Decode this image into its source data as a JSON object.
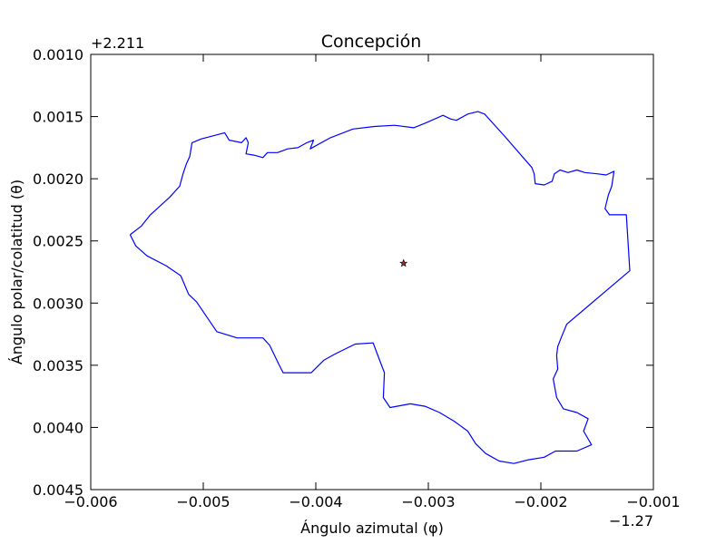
{
  "chart_data": {
    "type": "line",
    "title": "Concepción",
    "xlabel": "Ángulo azimutal (φ)",
    "ylabel": "Ángulo polar/colatitud (θ)",
    "x_offset_label": "−1.27",
    "y_offset_label": "+2.211",
    "xlim": [
      -0.006,
      -0.001
    ],
    "ylim": [
      0.0045,
      0.001
    ],
    "y_inverted": true,
    "grid": false,
    "xticks": [
      -0.006,
      -0.005,
      -0.004,
      -0.003,
      -0.002,
      -0.001
    ],
    "xtick_labels": [
      "−0.006",
      "−0.005",
      "−0.004",
      "−0.003",
      "−0.002",
      "−0.001"
    ],
    "yticks": [
      0.001,
      0.0015,
      0.002,
      0.0025,
      0.003,
      0.0035,
      0.004,
      0.0045
    ],
    "ytick_labels": [
      "0.0010",
      "0.0015",
      "0.0020",
      "0.0025",
      "0.0030",
      "0.0035",
      "0.0040",
      "0.0045"
    ],
    "line_color": "#0000ff",
    "marker_color": "#a52a2a",
    "series": [
      {
        "values": [
          [
            -0.00565,
            0.00245
          ],
          [
            -0.00555,
            0.00238
          ],
          [
            -0.00547,
            0.00229
          ],
          [
            -0.0053,
            0.00215
          ],
          [
            -0.00521,
            0.00206
          ],
          [
            -0.00518,
            0.00196
          ],
          [
            -0.00515,
            0.00188
          ],
          [
            -0.00512,
            0.00182
          ],
          [
            -0.0051,
            0.00171
          ],
          [
            -0.00502,
            0.00168
          ],
          [
            -0.00481,
            0.00163
          ],
          [
            -0.00477,
            0.00169
          ],
          [
            -0.00466,
            0.00171
          ],
          [
            -0.00462,
            0.00167
          ],
          [
            -0.0046,
            0.00171
          ],
          [
            -0.00462,
            0.0018
          ],
          [
            -0.00455,
            0.00181
          ],
          [
            -0.00447,
            0.00183
          ],
          [
            -0.00443,
            0.00179
          ],
          [
            -0.00434,
            0.00179
          ],
          [
            -0.00425,
            0.00176
          ],
          [
            -0.00416,
            0.00175
          ],
          [
            -0.00408,
            0.00171
          ],
          [
            -0.00402,
            0.00169
          ],
          [
            -0.00405,
            0.00176
          ],
          [
            -0.00387,
            0.00167
          ],
          [
            -0.00367,
            0.0016
          ],
          [
            -0.00348,
            0.00158
          ],
          [
            -0.0033,
            0.00157
          ],
          [
            -0.00313,
            0.00159
          ],
          [
            -0.00302,
            0.00155
          ],
          [
            -0.00287,
            0.00149
          ],
          [
            -0.0028,
            0.00152
          ],
          [
            -0.00275,
            0.00153
          ],
          [
            -0.00265,
            0.00148
          ],
          [
            -0.00256,
            0.00146
          ],
          [
            -0.0025,
            0.00148
          ],
          [
            -0.00232,
            0.00166
          ],
          [
            -0.00208,
            0.00191
          ],
          [
            -0.00206,
            0.00196
          ],
          [
            -0.00205,
            0.00204
          ],
          [
            -0.00197,
            0.00205
          ],
          [
            -0.0019,
            0.00202
          ],
          [
            -0.00188,
            0.00196
          ],
          [
            -0.00183,
            0.00193
          ],
          [
            -0.00176,
            0.00195
          ],
          [
            -0.00168,
            0.00193
          ],
          [
            -0.00161,
            0.00195
          ],
          [
            -0.0015,
            0.00196
          ],
          [
            -0.00142,
            0.00197
          ],
          [
            -0.00135,
            0.00194
          ],
          [
            -0.00137,
            0.00206
          ],
          [
            -0.0014,
            0.00213
          ],
          [
            -0.00143,
            0.00224
          ],
          [
            -0.00139,
            0.00229
          ],
          [
            -0.00124,
            0.00229
          ],
          [
            -0.00121,
            0.00274
          ],
          [
            -0.00177,
            0.00317
          ],
          [
            -0.00182,
            0.00328
          ],
          [
            -0.00185,
            0.00335
          ],
          [
            -0.00186,
            0.00342
          ],
          [
            -0.00185,
            0.00353
          ],
          [
            -0.00189,
            0.00361
          ],
          [
            -0.00186,
            0.00376
          ],
          [
            -0.0018,
            0.00385
          ],
          [
            -0.00168,
            0.00388
          ],
          [
            -0.00158,
            0.00393
          ],
          [
            -0.00162,
            0.00403
          ],
          [
            -0.00155,
            0.00414
          ],
          [
            -0.00168,
            0.00419
          ],
          [
            -0.00187,
            0.00419
          ],
          [
            -0.00197,
            0.00424
          ],
          [
            -0.00211,
            0.00426
          ],
          [
            -0.00224,
            0.00429
          ],
          [
            -0.00237,
            0.00427
          ],
          [
            -0.00249,
            0.00421
          ],
          [
            -0.00258,
            0.00413
          ],
          [
            -0.00265,
            0.00403
          ],
          [
            -0.00277,
            0.00395
          ],
          [
            -0.0029,
            0.00388
          ],
          [
            -0.00303,
            0.00383
          ],
          [
            -0.00316,
            0.00381
          ],
          [
            -0.00334,
            0.00384
          ],
          [
            -0.0034,
            0.00376
          ],
          [
            -0.00339,
            0.00356
          ],
          [
            -0.00347,
            0.00337
          ],
          [
            -0.00349,
            0.00332
          ],
          [
            -0.00365,
            0.00333
          ],
          [
            -0.00383,
            0.00341
          ],
          [
            -0.00393,
            0.00346
          ],
          [
            -0.00404,
            0.00356
          ],
          [
            -0.00429,
            0.00356
          ],
          [
            -0.00433,
            0.00349
          ],
          [
            -0.00441,
            0.00334
          ],
          [
            -0.00447,
            0.00328
          ],
          [
            -0.0047,
            0.00328
          ],
          [
            -0.00488,
            0.00323
          ],
          [
            -0.00506,
            0.00299
          ],
          [
            -0.00513,
            0.00293
          ],
          [
            -0.0052,
            0.00278
          ],
          [
            -0.00533,
            0.0027
          ],
          [
            -0.0055,
            0.00262
          ],
          [
            -0.0056,
            0.00254
          ],
          [
            -0.00565,
            0.00245
          ]
        ]
      }
    ],
    "markers": [
      {
        "x": -0.00322,
        "y": 0.00268,
        "symbol": "star"
      }
    ]
  }
}
